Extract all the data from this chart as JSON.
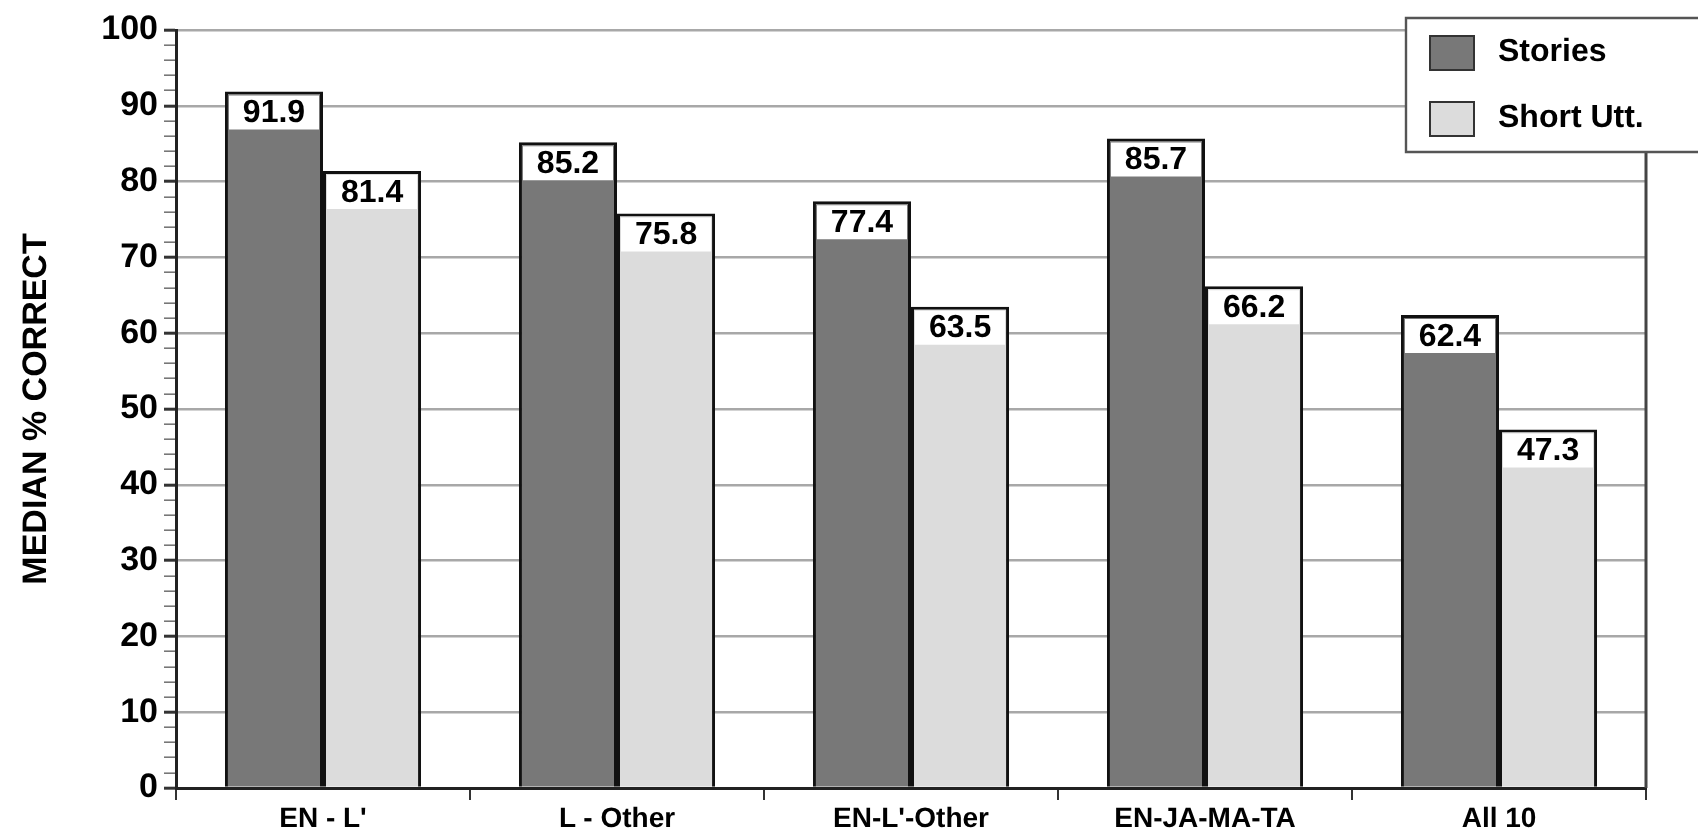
{
  "chart_data": {
    "type": "bar",
    "ylabel": "MEDIAN % CORRECT",
    "categories": [
      "EN - L'",
      "L - Other",
      "EN-L'-Other",
      "EN-JA-MA-TA",
      "All 10"
    ],
    "series": [
      {
        "name": "Stories",
        "color": "#787878",
        "values": [
          91.9,
          85.2,
          77.4,
          85.7,
          62.4
        ]
      },
      {
        "name": "Short Utt.",
        "color": "#dcdcdc",
        "values": [
          81.4,
          75.8,
          63.5,
          66.2,
          47.3
        ]
      }
    ],
    "ylim": [
      0,
      100
    ],
    "yticks": [
      0,
      {
        "value": 2,
        "label": null
      },
      {
        "value": 4,
        "label": null
      },
      {
        "value": 6,
        "label": null
      },
      {
        "value": 8,
        "label": null
      },
      10,
      {
        "value": 12,
        "label": null
      },
      {
        "value": 14,
        "label": null
      },
      {
        "value": 16,
        "label": null
      },
      {
        "value": 18,
        "label": null
      },
      20,
      {
        "value": 22,
        "label": null
      },
      {
        "value": 24,
        "label": null
      },
      {
        "value": 26,
        "label": null
      },
      {
        "value": 28,
        "label": null
      },
      30,
      {
        "value": 32,
        "label": null
      },
      {
        "value": 34,
        "label": null
      },
      {
        "value": 36,
        "label": null
      },
      {
        "value": 38,
        "label": null
      },
      40,
      {
        "value": 42,
        "label": null
      },
      {
        "value": 44,
        "label": null
      },
      {
        "value": 46,
        "label": null
      },
      {
        "value": 48,
        "label": null
      },
      50,
      {
        "value": 52,
        "label": null
      },
      {
        "value": 54,
        "label": null
      },
      {
        "value": 56,
        "label": null
      },
      {
        "value": 58,
        "label": null
      },
      60,
      {
        "value": 62,
        "label": null
      },
      {
        "value": 64,
        "label": null
      },
      {
        "value": 66,
        "label": null
      },
      {
        "value": 68,
        "label": null
      },
      70,
      {
        "value": 72,
        "label": null
      },
      {
        "value": 74,
        "label": null
      },
      {
        "value": 76,
        "label": null
      },
      {
        "value": 78,
        "label": null
      },
      80,
      {
        "value": 82,
        "label": null
      },
      {
        "value": 84,
        "label": null
      },
      {
        "value": 86,
        "label": null
      },
      {
        "value": 88,
        "label": null
      },
      90,
      {
        "value": 92,
        "label": null
      },
      {
        "value": 94,
        "label": null
      },
      {
        "value": 96,
        "label": null
      },
      {
        "value": 98,
        "label": null
      },
      100
    ],
    "grid": "y",
    "legend": "top right",
    "data_labels": true
  }
}
